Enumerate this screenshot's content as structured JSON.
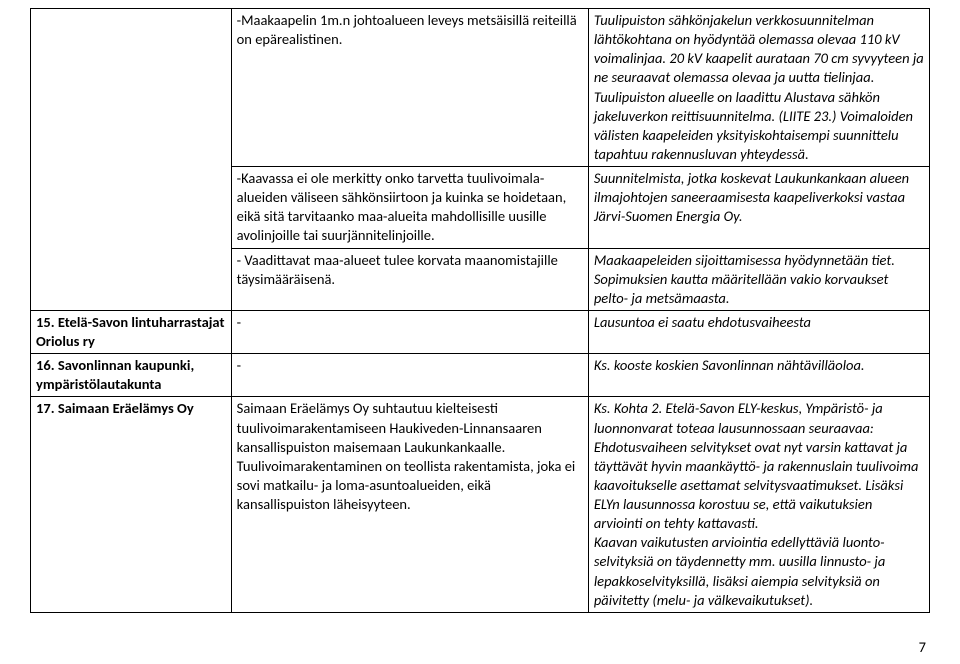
{
  "rows": [
    {
      "c1": "",
      "c2": "-Maakaapelin 1m.n johtoalueen leveys metsäisillä reiteillä on epärealistinen.",
      "c3": "Tuulipuiston sähkönjakelun verkkosuunnitelman lähtökohtana on hyödyntää olemassa olevaa 110 kV voimalinjaa. 20 kV kaapelit aurataan 70 cm syvyyteen ja ne seuraavat olemassa olevaa ja uutta tielinjaa. Tuulipuiston alueelle on laadittu Alustava sähkön jakeluverkon reittisuunnitelma. (LIITE 23.) Voimaloiden välisten kaapeleiden yksityiskohtaisempi suunnittelu tapahtuu rakennusluvan yhteydessä.",
      "c3_italic": true
    },
    {
      "c1": "",
      "c2": "-Kaavassa ei ole merkitty onko tarvetta tuulivoimala-alueiden väliseen sähkönsiirtoon ja kuinka se hoidetaan, eikä sitä tarvitaanko maa-alueita mahdollisille uusille avolinjoille tai suurjännitelinjoille.",
      "c3": "Suunnitelmista, jotka koskevat Laukunkankaan alueen ilmajohtojen saneeraamisesta kaapeliverkoksi vastaa Järvi-Suomen Energia Oy.",
      "c3_italic": true
    },
    {
      "c1": "",
      "c2": "- Vaadittavat maa-alueet tulee korvata maanomistajille täysimääräisenä.",
      "c3": "Maakaapeleiden sijoittamisessa hyödynnetään tiet. Sopimuksien kautta määritellään vakio korvaukset pelto- ja metsämaasta.",
      "c3_italic": true
    },
    {
      "c1": "15. Etelä-Savon lintuharrastajat Oriolus ry",
      "c1_bold": true,
      "c2": "-",
      "c3": "Lausuntoa ei saatu ehdotusvaiheesta",
      "c3_italic": true
    },
    {
      "c1": "16. Savonlinnan kaupunki, ympäristölautakunta",
      "c1_bold": true,
      "c2": "-",
      "c3": "Ks. kooste koskien Savonlinnan nähtävilläoloa.",
      "c3_italic": true
    },
    {
      "c1": "17. Saimaan Eräelämys Oy",
      "c1_bold": true,
      "c2": "Saimaan Eräelämys Oy suhtautuu kielteisesti tuulivoimarakentamiseen Haukiveden-Linnansaaren kansallispuiston maisemaan Laukunkankaalle. Tuulivoimarakentaminen on teollista rakentamista, joka ei sovi matkailu- ja loma-asuntoalueiden, eikä kansallispuiston läheisyyteen.",
      "c3": "Ks. Kohta 2. Etelä-Savon ELY-keskus, Ympäristö- ja luonnonvarat toteaa lausunnossaan seuraavaa: Ehdotusvaiheen selvitykset ovat nyt varsin kattavat ja täyttävät hyvin maankäyttö- ja rakennuslain tuulivoima kaavoitukselle asettamat selvitysvaatimukset. Lisäksi ELYn lausunnossa korostuu se, että vaikutuksien arviointi on tehty kattavasti.\nKaavan vaikutusten arviointia edellyttäviä luonto-selvityksiä on täydennetty mm. uusilla linnusto- ja lepakkoselvityksillä, lisäksi aiempia selvityksiä on päivitetty (melu- ja välkevaikutukset).",
      "c3_italic": true
    }
  ],
  "pagenum": "7"
}
